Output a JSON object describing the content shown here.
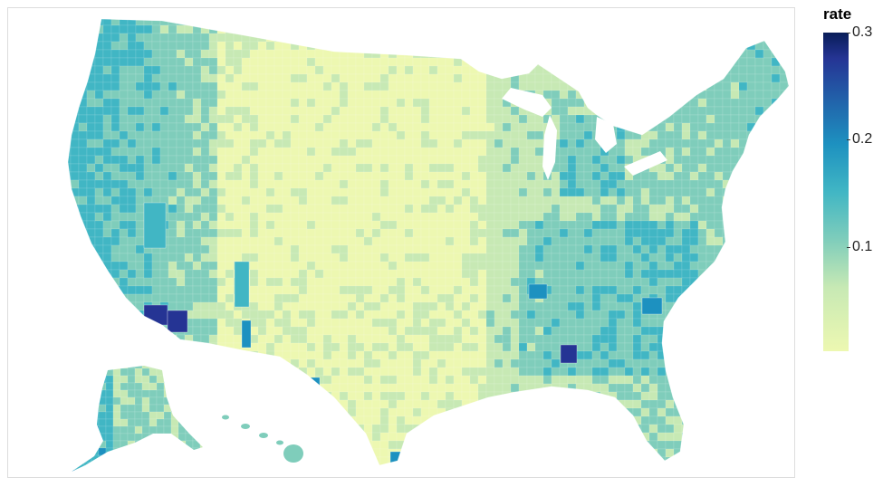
{
  "legend": {
    "title": "rate",
    "ticks": [
      "0.3",
      "0.2",
      "0.1"
    ],
    "tick_values": [
      0.3,
      0.2,
      0.1
    ],
    "domain": [
      0,
      0.3
    ]
  },
  "colors": {
    "scale": [
      "#edf8b1",
      "#c7e9b4",
      "#7fcdbb",
      "#41b6c4",
      "#1d91c0",
      "#225ea8",
      "#253494",
      "#081d58"
    ],
    "frame_border": "#dddddd",
    "background": "#ffffff"
  }
}
